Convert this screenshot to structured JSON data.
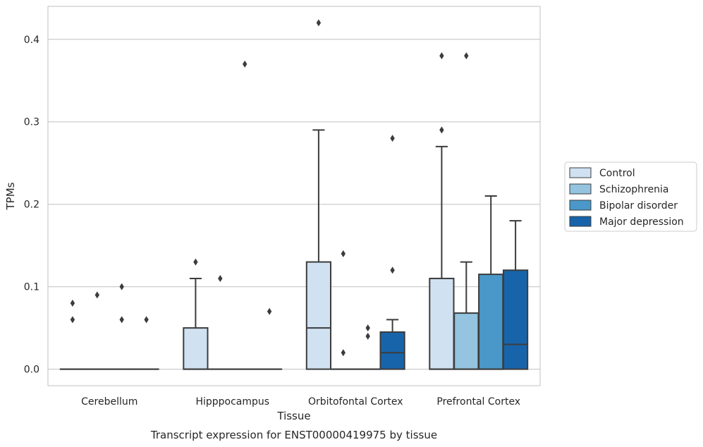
{
  "chart_data": {
    "type": "boxplot",
    "caption": "Transcript expression for ENST00000419975 by tissue",
    "xlabel": "Tissue",
    "ylabel": "TPMs",
    "ylim": [
      -0.02,
      0.44
    ],
    "yticks": [
      0.0,
      0.1,
      0.2,
      0.3,
      0.4
    ],
    "ytick_labels": [
      "0.0",
      "0.1",
      "0.2",
      "0.3",
      "0.4"
    ],
    "grid": "horizontal",
    "legend_position": "right",
    "categories": [
      "Cerebellum",
      "Hipppocampus",
      "Orbitofontal Cortex",
      "Prefrontal Cortex"
    ],
    "series": [
      {
        "name": "Control",
        "color": "#d0e1f2",
        "boxes": [
          {
            "q1": 0,
            "median": 0,
            "q3": 0,
            "whisker_low": 0,
            "whisker_high": 0,
            "outliers": [
              0.08,
              0.06
            ]
          },
          {
            "q1": 0,
            "median": 0,
            "q3": 0.05,
            "whisker_low": 0,
            "whisker_high": 0.11,
            "outliers": [
              0.13
            ]
          },
          {
            "q1": 0,
            "median": 0.05,
            "q3": 0.13,
            "whisker_low": 0,
            "whisker_high": 0.29,
            "outliers": [
              0.42
            ]
          },
          {
            "q1": 0,
            "median": 0,
            "q3": 0.11,
            "whisker_low": 0,
            "whisker_high": 0.27,
            "outliers": [
              0.38,
              0.29
            ]
          }
        ]
      },
      {
        "name": "Schizophrenia",
        "color": "#94c4df",
        "boxes": [
          {
            "q1": 0,
            "median": 0,
            "q3": 0,
            "whisker_low": 0,
            "whisker_high": 0,
            "outliers": [
              0.09
            ]
          },
          {
            "q1": 0,
            "median": 0,
            "q3": 0,
            "whisker_low": 0,
            "whisker_high": 0,
            "outliers": [
              0.11
            ]
          },
          {
            "q1": 0,
            "median": 0,
            "q3": 0,
            "whisker_low": 0,
            "whisker_high": 0,
            "outliers": [
              0.14,
              0.02
            ]
          },
          {
            "q1": 0,
            "median": 0,
            "q3": 0.068,
            "whisker_low": 0,
            "whisker_high": 0.13,
            "outliers": [
              0.38
            ]
          }
        ]
      },
      {
        "name": "Bipolar disorder",
        "color": "#4a98c9",
        "boxes": [
          {
            "q1": 0,
            "median": 0,
            "q3": 0,
            "whisker_low": 0,
            "whisker_high": 0,
            "outliers": [
              0.1,
              0.06
            ]
          },
          {
            "q1": 0,
            "median": 0,
            "q3": 0,
            "whisker_low": 0,
            "whisker_high": 0,
            "outliers": [
              0.37
            ]
          },
          {
            "q1": 0,
            "median": 0,
            "q3": 0,
            "whisker_low": 0,
            "whisker_high": 0,
            "outliers": [
              0.05,
              0.04
            ]
          },
          {
            "q1": 0,
            "median": 0,
            "q3": 0.115,
            "whisker_low": 0,
            "whisker_high": 0.21,
            "outliers": []
          }
        ]
      },
      {
        "name": "Major depression",
        "color": "#1764ab",
        "boxes": [
          {
            "q1": 0,
            "median": 0,
            "q3": 0,
            "whisker_low": 0,
            "whisker_high": 0,
            "outliers": [
              0.06
            ]
          },
          {
            "q1": 0,
            "median": 0,
            "q3": 0,
            "whisker_low": 0,
            "whisker_high": 0,
            "outliers": [
              0.07
            ]
          },
          {
            "q1": 0,
            "median": 0.02,
            "q3": 0.045,
            "whisker_low": 0,
            "whisker_high": 0.06,
            "outliers": [
              0.28,
              0.12
            ]
          },
          {
            "q1": 0,
            "median": 0.03,
            "q3": 0.12,
            "whisker_low": 0,
            "whisker_high": 0.18,
            "outliers": []
          }
        ]
      }
    ]
  }
}
